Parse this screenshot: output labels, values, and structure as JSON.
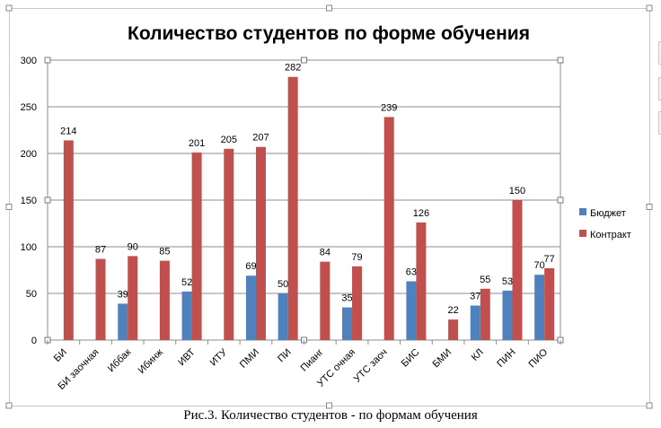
{
  "chart_data": {
    "type": "bar",
    "title": "Количество студентов по форме обучения",
    "categories": [
      "БИ",
      "БИ заочная",
      "Иббак",
      "Ибинж",
      "ИВТ",
      "ИТУ",
      "ПМИ",
      "ПИ",
      "Пианг",
      "УТС очная",
      "УТС заоч",
      "БИС",
      "БМИ",
      "КЛ",
      "ПИН",
      "ПИО"
    ],
    "series": [
      {
        "name": "Бюджет",
        "color": "#4f81bd",
        "values": [
          null,
          null,
          39,
          null,
          52,
          null,
          69,
          50,
          null,
          35,
          null,
          63,
          null,
          37,
          53,
          70
        ]
      },
      {
        "name": "Контракт",
        "color": "#c0504d",
        "values": [
          214,
          87,
          90,
          85,
          201,
          205,
          207,
          282,
          84,
          79,
          239,
          126,
          22,
          55,
          150,
          77
        ]
      }
    ],
    "ylim": [
      0,
      300
    ],
    "yticks": [
      0,
      50,
      100,
      150,
      200,
      250,
      300
    ],
    "grid": true,
    "legend": "right",
    "xlabel": "",
    "ylabel": ""
  },
  "caption": "Рис.3. Количество студентов - по формам обучения"
}
